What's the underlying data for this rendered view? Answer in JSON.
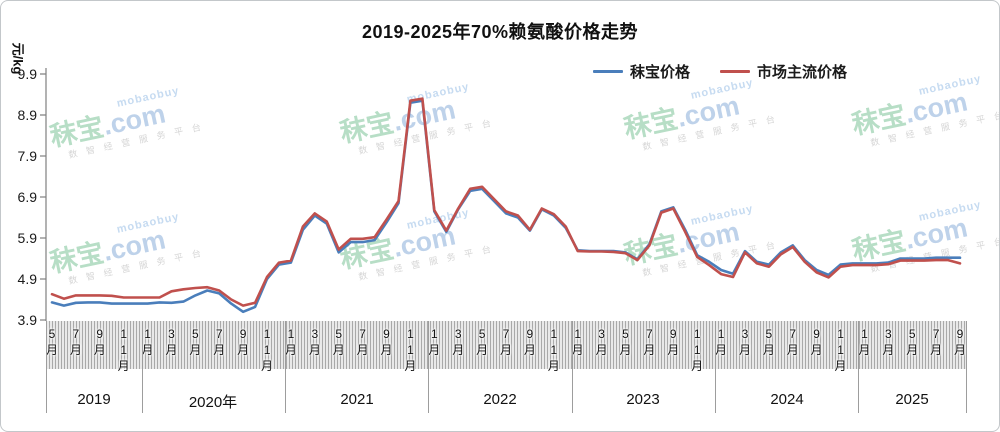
{
  "chart": {
    "title": "2019-2025年70%赖氨酸价格走势",
    "y_unit": "元/kg",
    "legend": [
      {
        "label": "秣宝价格",
        "color": "#4a7ebb"
      },
      {
        "label": "市场主流价格",
        "color": "#c0504d"
      }
    ]
  },
  "watermark": {
    "handle": "mobaobuy",
    "brand": "秣宝",
    "suffix": ".com",
    "tagline": "数智经营服务平台"
  },
  "chart_data": {
    "type": "line",
    "title": "2019-2025年70%赖氨酸价格走势",
    "ylabel": "元/kg",
    "ylim": [
      3.9,
      9.9
    ],
    "yticks": [
      "9.9",
      "8.9",
      "7.9",
      "6.9",
      "5.9",
      "4.9",
      "3.9"
    ],
    "x_start": "2019-05",
    "x_end": "2025-09",
    "grid": false,
    "legend_position": "top-right",
    "month_ticks": [
      {
        "m": 0,
        "label": "5月"
      },
      {
        "m": 2,
        "label": "7月"
      },
      {
        "m": 4,
        "label": "9月"
      },
      {
        "m": 6,
        "label": "11月"
      },
      {
        "m": 8,
        "label": "1月"
      },
      {
        "m": 10,
        "label": "3月"
      },
      {
        "m": 12,
        "label": "5月"
      },
      {
        "m": 14,
        "label": "7月"
      },
      {
        "m": 16,
        "label": "9月"
      },
      {
        "m": 18,
        "label": "11月"
      },
      {
        "m": 20,
        "label": "1月"
      },
      {
        "m": 22,
        "label": "3月"
      },
      {
        "m": 24,
        "label": "5月"
      },
      {
        "m": 26,
        "label": "7月"
      },
      {
        "m": 28,
        "label": "9月"
      },
      {
        "m": 30,
        "label": "11月"
      },
      {
        "m": 32,
        "label": "1月"
      },
      {
        "m": 34,
        "label": "3月"
      },
      {
        "m": 36,
        "label": "5月"
      },
      {
        "m": 38,
        "label": "7月"
      },
      {
        "m": 40,
        "label": "9月"
      },
      {
        "m": 42,
        "label": "11月"
      },
      {
        "m": 44,
        "label": "1月"
      },
      {
        "m": 46,
        "label": "3月"
      },
      {
        "m": 48,
        "label": "5月"
      },
      {
        "m": 50,
        "label": "7月"
      },
      {
        "m": 52,
        "label": "9月"
      },
      {
        "m": 54,
        "label": "11月"
      },
      {
        "m": 56,
        "label": "1月"
      },
      {
        "m": 58,
        "label": "3月"
      },
      {
        "m": 60,
        "label": "5月"
      },
      {
        "m": 62,
        "label": "7月"
      },
      {
        "m": 64,
        "label": "9月"
      },
      {
        "m": 66,
        "label": "11月"
      },
      {
        "m": 68,
        "label": "1月"
      },
      {
        "m": 70,
        "label": "3月"
      },
      {
        "m": 72,
        "label": "5月"
      },
      {
        "m": 74,
        "label": "7月"
      },
      {
        "m": 76,
        "label": "9月"
      }
    ],
    "year_groups": [
      {
        "label": "2019",
        "start_m": 0,
        "months": 8
      },
      {
        "label": "2020年",
        "start_m": 8,
        "months": 12
      },
      {
        "label": "2021",
        "start_m": 20,
        "months": 12
      },
      {
        "label": "2022",
        "start_m": 32,
        "months": 12
      },
      {
        "label": "2023",
        "start_m": 44,
        "months": 12
      },
      {
        "label": "2024",
        "start_m": 56,
        "months": 12
      },
      {
        "label": "2025",
        "start_m": 68,
        "months": 9
      }
    ],
    "series": [
      {
        "name": "秣宝价格",
        "color": "#4a7ebb",
        "values": [
          4.33,
          4.25,
          4.32,
          4.33,
          4.33,
          4.3,
          4.3,
          4.3,
          4.3,
          4.33,
          4.32,
          4.35,
          4.5,
          4.62,
          4.55,
          4.3,
          4.1,
          4.22,
          4.9,
          5.25,
          5.3,
          6.1,
          6.45,
          6.25,
          5.55,
          5.8,
          5.8,
          5.85,
          6.28,
          6.75,
          9.2,
          9.25,
          6.55,
          6.05,
          6.6,
          7.05,
          7.1,
          6.8,
          6.5,
          6.4,
          6.08,
          6.6,
          6.45,
          6.15,
          5.6,
          5.58,
          5.58,
          5.58,
          5.55,
          5.38,
          5.75,
          6.55,
          6.65,
          6.1,
          5.48,
          5.32,
          5.12,
          5.03,
          5.58,
          5.32,
          5.25,
          5.55,
          5.72,
          5.36,
          5.12,
          5.0,
          5.25,
          5.28,
          5.28,
          5.28,
          5.3,
          5.4,
          5.4,
          5.4,
          5.42,
          5.42,
          5.42
        ]
      },
      {
        "name": "市场主流价格",
        "color": "#c0504d",
        "values": [
          4.53,
          4.42,
          4.5,
          4.5,
          4.5,
          4.49,
          4.45,
          4.45,
          4.45,
          4.45,
          4.6,
          4.65,
          4.68,
          4.7,
          4.62,
          4.4,
          4.25,
          4.32,
          4.95,
          5.3,
          5.35,
          6.18,
          6.5,
          6.3,
          5.62,
          5.88,
          5.88,
          5.92,
          6.35,
          6.8,
          9.25,
          9.3,
          6.58,
          6.08,
          6.62,
          7.1,
          7.15,
          6.85,
          6.55,
          6.45,
          6.1,
          6.62,
          6.48,
          6.18,
          5.58,
          5.57,
          5.57,
          5.56,
          5.53,
          5.36,
          5.72,
          6.52,
          6.62,
          6.05,
          5.44,
          5.24,
          5.02,
          4.95,
          5.55,
          5.28,
          5.2,
          5.5,
          5.68,
          5.32,
          5.06,
          4.94,
          5.2,
          5.24,
          5.24,
          5.24,
          5.26,
          5.35,
          5.35,
          5.35,
          5.36,
          5.36,
          5.28
        ]
      }
    ]
  }
}
